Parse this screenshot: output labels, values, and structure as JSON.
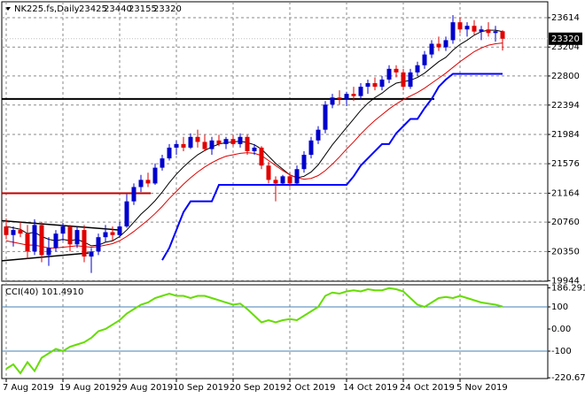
{
  "chart_data": [
    {
      "type": "candlestick",
      "title": "NK225.fs,Daily",
      "categories": [
        "7 Aug 2019",
        null,
        null,
        null,
        null,
        null,
        null,
        null,
        "19 Aug 2019",
        null,
        null,
        null,
        null,
        null,
        null,
        null,
        "29 Aug 2019",
        null,
        null,
        null,
        null,
        null,
        null,
        null,
        "10 Sep 2019",
        null,
        null,
        null,
        null,
        null,
        null,
        null,
        "20 Sep 2019",
        null,
        null,
        null,
        null,
        null,
        null,
        null,
        "2 Oct 2019",
        null,
        null,
        null,
        null,
        null,
        null,
        null,
        "14 Oct 2019",
        null,
        null,
        null,
        null,
        null,
        null,
        null,
        "24 Oct 2019",
        null,
        null,
        null,
        null,
        null,
        null,
        null,
        "5 Nov 2019",
        null,
        null,
        null,
        null,
        null,
        null
      ],
      "open": [
        20700,
        20580,
        20650,
        20600,
        20350,
        20720,
        20300,
        20400,
        20600,
        20700,
        20450,
        20650,
        20280,
        20350,
        20550,
        20620,
        20580,
        20700,
        21050,
        21250,
        21350,
        21300,
        21520,
        21650,
        21800,
        21850,
        21800,
        21950,
        21880,
        21780,
        21900,
        21850,
        21920,
        21850,
        21950,
        21750,
        21800,
        21550,
        21350,
        21300,
        21400,
        21300,
        21500,
        21700,
        21900,
        22050,
        22400,
        22500,
        22480,
        22550,
        22520,
        22650,
        22700,
        22650,
        22750,
        22900,
        22850,
        22650,
        22850,
        22950,
        23100,
        23250,
        23200,
        23300,
        23550,
        23450,
        23500,
        23420,
        23450,
        23400,
        23425
      ],
      "high": [
        20810,
        20700,
        20760,
        20720,
        20800,
        20760,
        20550,
        20650,
        20750,
        20720,
        20700,
        20720,
        20400,
        20600,
        20720,
        20700,
        20760,
        21150,
        21300,
        21420,
        21450,
        21580,
        21700,
        21850,
        21900,
        21950,
        22000,
        22050,
        21980,
        21950,
        21980,
        21950,
        21980,
        22000,
        21980,
        21850,
        21820,
        21600,
        21400,
        21420,
        21450,
        21550,
        21750,
        21950,
        22100,
        22450,
        22550,
        22600,
        22580,
        22650,
        22700,
        22750,
        22780,
        22800,
        22950,
        22950,
        22900,
        22900,
        23000,
        23150,
        23300,
        23350,
        23350,
        23650,
        23620,
        23550,
        23580,
        23500,
        23550,
        23500,
        23440
      ],
      "low": [
        20520,
        20420,
        20550,
        20250,
        20300,
        20200,
        20150,
        20350,
        20500,
        20350,
        20400,
        20200,
        20050,
        20300,
        20480,
        20500,
        20540,
        20680,
        21000,
        21180,
        21250,
        21280,
        21480,
        21620,
        21700,
        21750,
        21780,
        21800,
        21750,
        21700,
        21820,
        21780,
        21820,
        21800,
        21700,
        21700,
        21500,
        21300,
        21050,
        21280,
        21250,
        21280,
        21450,
        21650,
        21850,
        22000,
        22350,
        22400,
        22380,
        22450,
        22480,
        22550,
        22600,
        22600,
        22700,
        22780,
        22600,
        22620,
        22800,
        22900,
        23050,
        23150,
        23150,
        23250,
        23400,
        23350,
        23380,
        23300,
        23350,
        23280,
        23155
      ],
      "close": [
        20580,
        20650,
        20600,
        20350,
        20720,
        20300,
        20400,
        20600,
        20700,
        20450,
        20650,
        20280,
        20350,
        20550,
        20620,
        20580,
        20700,
        21050,
        21250,
        21350,
        21300,
        21520,
        21650,
        21800,
        21850,
        21800,
        21950,
        21880,
        21780,
        21900,
        21850,
        21920,
        21850,
        21950,
        21750,
        21800,
        21550,
        21350,
        21300,
        21400,
        21300,
        21500,
        21700,
        21900,
        22050,
        22400,
        22500,
        22480,
        22550,
        22520,
        22650,
        22700,
        22650,
        22750,
        22900,
        22850,
        22650,
        22850,
        22950,
        23100,
        23250,
        23200,
        23300,
        23550,
        23450,
        23500,
        23420,
        23450,
        23400,
        23425,
        23320
      ],
      "up_color": "#0000cd",
      "down_color": "#e00000",
      "overlays": [
        {
          "color": "#000000",
          "values": [
            20700,
            20680,
            20660,
            20600,
            20620,
            20560,
            20520,
            20500,
            20520,
            20500,
            20520,
            20480,
            20430,
            20440,
            20480,
            20500,
            20560,
            20650,
            20760,
            20870,
            20960,
            21060,
            21180,
            21310,
            21430,
            21530,
            21620,
            21700,
            21760,
            21810,
            21850,
            21870,
            21880,
            21890,
            21870,
            21840,
            21780,
            21680,
            21580,
            21500,
            21420,
            21380,
            21400,
            21460,
            21560,
            21700,
            21840,
            21960,
            22080,
            22200,
            22320,
            22420,
            22500,
            22560,
            22640,
            22700,
            22720,
            22740,
            22780,
            22840,
            22920,
            23000,
            23060,
            23160,
            23240,
            23300,
            23370,
            23420,
            23440,
            23440,
            23420
          ]
        },
        {
          "color": "#e00000",
          "values": [
            20500,
            20480,
            20460,
            20440,
            20440,
            20420,
            20400,
            20400,
            20410,
            20420,
            20430,
            20420,
            20410,
            20420,
            20440,
            20460,
            20500,
            20560,
            20630,
            20710,
            20790,
            20880,
            20980,
            21090,
            21190,
            21290,
            21380,
            21460,
            21530,
            21590,
            21640,
            21680,
            21700,
            21720,
            21730,
            21720,
            21690,
            21620,
            21550,
            21480,
            21420,
            21380,
            21360,
            21370,
            21410,
            21480,
            21570,
            21670,
            21780,
            21880,
            21990,
            22090,
            22180,
            22260,
            22340,
            22410,
            22470,
            22520,
            22570,
            22630,
            22700,
            22770,
            22840,
            22920,
            23000,
            23070,
            23140,
            23190,
            23230,
            23250,
            23260
          ]
        },
        {
          "color": "#0000ff",
          "values": [
            null,
            null,
            null,
            null,
            null,
            null,
            null,
            null,
            null,
            null,
            null,
            null,
            null,
            null,
            null,
            null,
            null,
            null,
            null,
            null,
            null,
            null,
            20230,
            20400,
            20650,
            20900,
            21050,
            21050,
            21050,
            21050,
            21280,
            21280,
            21280,
            21280,
            21280,
            21280,
            21280,
            21280,
            21280,
            21280,
            21280,
            21280,
            21280,
            21280,
            21280,
            21280,
            21280,
            21280,
            21280,
            21400,
            21550,
            21650,
            21750,
            21850,
            21850,
            22000,
            22100,
            22200,
            22200,
            22350,
            22480,
            22650,
            22750,
            22830,
            22830,
            22830,
            22830,
            22830,
            22830,
            22830,
            22830
          ]
        }
      ],
      "hlines": [
        {
          "value": 22480,
          "color": "#000000"
        },
        {
          "value": 21164,
          "color": "#c00000"
        }
      ],
      "trendlines": [
        {
          "values": [
            20780,
            20650
          ]
        },
        {
          "values": [
            20220,
            20330
          ]
        }
      ],
      "ylim": [
        19935,
        23836
      ],
      "yticks": [
        23614,
        23204,
        22800,
        22394,
        21984,
        21576,
        21164,
        20760,
        20350,
        19944
      ],
      "grid": true
    },
    {
      "type": "line",
      "title": "CCI(40) 101.4910",
      "color": "#66dd00",
      "level_color": "#4682b4",
      "values": [
        -180,
        -160,
        -200,
        -150,
        -190,
        -130,
        -110,
        -90,
        -100,
        -80,
        -70,
        -60,
        -40,
        -10,
        0,
        20,
        40,
        70,
        90,
        110,
        120,
        140,
        150,
        160,
        150,
        150,
        140,
        150,
        150,
        140,
        130,
        120,
        110,
        115,
        90,
        60,
        30,
        40,
        30,
        40,
        45,
        40,
        60,
        80,
        100,
        150,
        165,
        160,
        170,
        175,
        170,
        180,
        175,
        175,
        185,
        180,
        170,
        140,
        110,
        100,
        120,
        140,
        145,
        140,
        150,
        140,
        130,
        120,
        115,
        110,
        101.491
      ],
      "levels": [
        100,
        -100
      ],
      "ylim": [
        -224,
        200
      ],
      "yticks": [
        {
          "value": 186.291,
          "label": "186.291"
        },
        100,
        {
          "value": 0,
          "label": "0.00"
        },
        -100,
        {
          "value": -220.674,
          "label": "-220.674"
        }
      ]
    }
  ]
}
